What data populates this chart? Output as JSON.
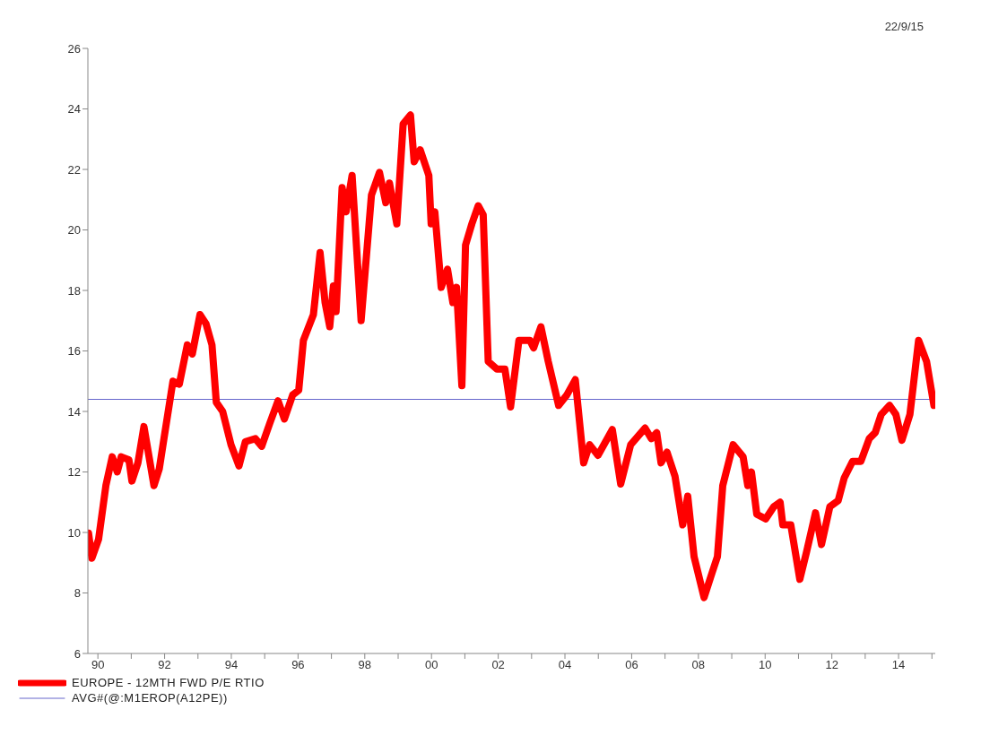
{
  "chart_data": {
    "type": "line",
    "annotations": [
      "22/9/15"
    ],
    "xlim": [
      1989.7,
      2015.1
    ],
    "xticks": [
      {
        "value": 1990,
        "label": "90"
      },
      {
        "value": 1991,
        "label": null
      },
      {
        "value": 1992,
        "label": "92"
      },
      {
        "value": 1993,
        "label": null
      },
      {
        "value": 1994,
        "label": "94"
      },
      {
        "value": 1995,
        "label": null
      },
      {
        "value": 1996,
        "label": "96"
      },
      {
        "value": 1997,
        "label": null
      },
      {
        "value": 1998,
        "label": "98"
      },
      {
        "value": 1999,
        "label": null
      },
      {
        "value": 2000,
        "label": "00"
      },
      {
        "value": 2001,
        "label": null
      },
      {
        "value": 2002,
        "label": "02"
      },
      {
        "value": 2003,
        "label": null
      },
      {
        "value": 2004,
        "label": "04"
      },
      {
        "value": 2005,
        "label": null
      },
      {
        "value": 2006,
        "label": "06"
      },
      {
        "value": 2007,
        "label": null
      },
      {
        "value": 2008,
        "label": "08"
      },
      {
        "value": 2009,
        "label": null
      },
      {
        "value": 2010,
        "label": "10"
      },
      {
        "value": 2011,
        "label": null
      },
      {
        "value": 2012,
        "label": "12"
      },
      {
        "value": 2013,
        "label": null
      },
      {
        "value": 2014,
        "label": "14"
      },
      {
        "value": 2015,
        "label": null
      }
    ],
    "ylim": [
      6,
      26
    ],
    "yticks": [
      6,
      8,
      10,
      12,
      14,
      16,
      18,
      20,
      22,
      24,
      26
    ],
    "grid": false,
    "legend": "bottom left",
    "marker": "none",
    "line_style": "solid",
    "ref_lines": [
      {
        "axis": "y",
        "value": 14.4,
        "label": "AVG#(@:M1EROP(A12PE))",
        "color": "#6666cc",
        "line_style": "solid"
      }
    ],
    "series": [
      {
        "name": "EUROPE - 12MTH FWD P/E RTIO",
        "color": "#ff0000",
        "x": [
          1989.72,
          1989.82,
          1990.02,
          1990.24,
          1990.43,
          1990.58,
          1990.7,
          1990.93,
          1991.02,
          1991.2,
          1991.38,
          1991.68,
          1991.84,
          1991.98,
          1992.25,
          1992.44,
          1992.68,
          1992.83,
          1993.06,
          1993.24,
          1993.42,
          1993.55,
          1993.74,
          1993.99,
          1994.23,
          1994.42,
          1994.72,
          1994.91,
          1995.15,
          1995.4,
          1995.59,
          1995.84,
          1996.02,
          1996.16,
          1996.46,
          1996.66,
          1996.81,
          1996.95,
          1997.06,
          1997.14,
          1997.32,
          1997.44,
          1997.62,
          1997.89,
          1998.2,
          1998.44,
          1998.63,
          1998.74,
          1998.96,
          1999.15,
          1999.37,
          1999.48,
          1999.66,
          1999.92,
          1999.99,
          2000.1,
          2000.29,
          2000.48,
          2000.64,
          2000.75,
          2000.91,
          2001.02,
          2001.21,
          2001.4,
          2001.55,
          2001.7,
          2001.96,
          2002.2,
          2002.37,
          2002.62,
          2002.95,
          2003.06,
          2003.28,
          2003.5,
          2003.81,
          2004.06,
          2004.31,
          2004.56,
          2004.74,
          2004.99,
          2005.42,
          2005.67,
          2005.97,
          2006.4,
          2006.59,
          2006.75,
          2006.88,
          2007.06,
          2007.3,
          2007.53,
          2007.68,
          2007.87,
          2008.17,
          2008.42,
          2008.57,
          2008.73,
          2009.04,
          2009.34,
          2009.48,
          2009.59,
          2009.75,
          2010.02,
          2010.26,
          2010.45,
          2010.53,
          2010.77,
          2011.04,
          2011.24,
          2011.51,
          2011.69,
          2011.94,
          2012.19,
          2012.37,
          2012.62,
          2012.87,
          2013.12,
          2013.3,
          2013.48,
          2013.73,
          2013.92,
          2014.1,
          2014.34,
          2014.6,
          2014.84,
          2015.06
        ],
        "values": [
          9.98,
          9.15,
          9.77,
          11.55,
          12.5,
          12.0,
          12.5,
          12.4,
          11.7,
          12.3,
          13.5,
          11.55,
          12.1,
          13.1,
          15.0,
          14.9,
          16.2,
          15.9,
          17.2,
          16.9,
          16.2,
          14.3,
          14.0,
          12.9,
          12.2,
          13.0,
          13.1,
          12.85,
          13.6,
          14.35,
          13.75,
          14.55,
          14.7,
          16.35,
          17.2,
          19.25,
          17.6,
          16.8,
          18.15,
          17.3,
          21.4,
          20.6,
          21.8,
          17.0,
          21.15,
          21.9,
          20.9,
          21.55,
          20.2,
          23.5,
          23.8,
          22.25,
          22.65,
          21.8,
          20.2,
          20.6,
          18.1,
          18.7,
          17.6,
          18.1,
          14.85,
          19.5,
          20.2,
          20.8,
          20.5,
          15.65,
          15.4,
          15.4,
          14.15,
          16.35,
          16.35,
          16.1,
          16.8,
          15.65,
          14.2,
          14.55,
          15.05,
          12.3,
          12.9,
          12.55,
          13.4,
          11.6,
          12.9,
          13.45,
          13.1,
          13.3,
          12.3,
          12.65,
          11.85,
          10.25,
          11.2,
          9.2,
          7.85,
          8.7,
          9.2,
          11.55,
          12.9,
          12.5,
          11.55,
          12.0,
          10.6,
          10.45,
          10.85,
          11.0,
          10.25,
          10.25,
          8.45,
          9.35,
          10.65,
          9.6,
          10.85,
          11.05,
          11.8,
          12.35,
          12.35,
          13.1,
          13.3,
          13.9,
          14.2,
          13.9,
          13.05,
          13.9,
          16.35,
          15.65,
          14.2
        ]
      }
    ]
  }
}
